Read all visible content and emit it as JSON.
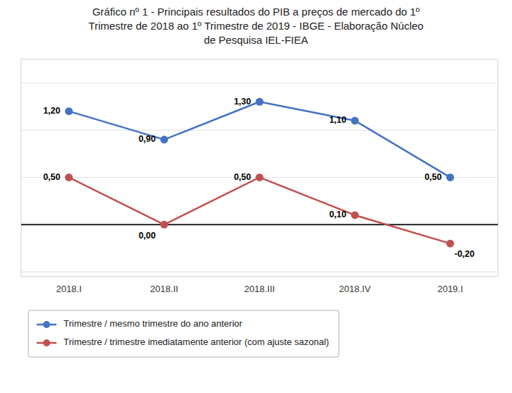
{
  "chart_data": {
    "type": "line",
    "title": "Gráfico nº 1 -  Principais resultados do PIB a preços de mercado do 1º\nTrimestre de 2018 ao 1º Trimestre de 2019 - IBGE - Elaboração Núcleo\nde Pesquisa IEL-FIEA",
    "categories": [
      "2018.I",
      "2018.II",
      "2018.III",
      "2018.IV",
      "2019.I"
    ],
    "series": [
      {
        "name": "Trimestre / mesmo trimestre do ano anterior",
        "color": "#4472C4",
        "marker": "circle",
        "values": [
          1.2,
          0.9,
          1.3,
          1.1,
          0.5
        ],
        "value_labels": [
          "1,20",
          "0,90",
          "1,30",
          "1,10",
          "0,50"
        ]
      },
      {
        "name": "Trimestre / trimestre imediatamente anterior (com ajuste sazonal)",
        "color": "#C0504D",
        "marker": "circle",
        "values": [
          0.5,
          0.0,
          0.5,
          0.1,
          -0.2
        ],
        "value_labels": [
          "0,50",
          "0,00",
          "0,50",
          "0,10",
          "-0,20"
        ]
      }
    ],
    "ylim": [
      -0.55,
      1.75
    ],
    "yticks": [
      -0.5,
      0,
      0.5,
      1,
      1.5
    ],
    "grid": true,
    "tick_labels": "x",
    "data_labels": true,
    "legend": "bottom"
  }
}
